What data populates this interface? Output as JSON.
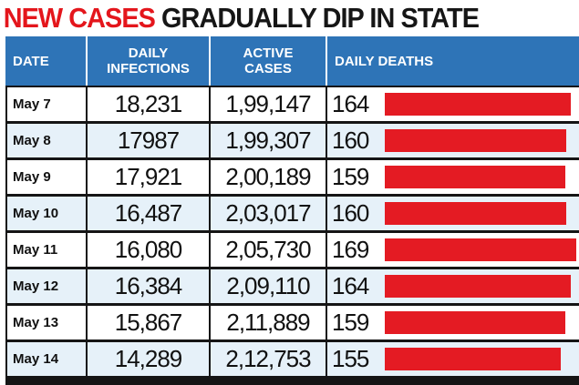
{
  "headline": {
    "part1": "NEW CASES",
    "part2": "GRADUALLY DIP IN STATE"
  },
  "table": {
    "headers": {
      "date": "DATE",
      "infections": "DAILY\nINFECTIONS",
      "active": "ACTIVE\nCASES",
      "deaths": "DAILY DEATHS"
    }
  },
  "colors": {
    "header_bg": "#2e74b7",
    "row_alt": "#e6f1f9",
    "bar": "#e41b23",
    "headline_red": "#e4161c"
  },
  "chart_data": {
    "type": "table",
    "bar_column": "DAILY DEATHS",
    "rows": [
      {
        "date": "May 7",
        "infections": "18,231",
        "active": "1,99,147",
        "deaths": "164",
        "deaths_value": 164
      },
      {
        "date": "May 8",
        "infections": "17987",
        "active": "1,99,307",
        "deaths": "160",
        "deaths_value": 160
      },
      {
        "date": "May 9",
        "infections": "17,921",
        "active": "2,00,189",
        "deaths": "159",
        "deaths_value": 159
      },
      {
        "date": "May 10",
        "infections": "16,487",
        "active": "2,03,017",
        "deaths": "160",
        "deaths_value": 160
      },
      {
        "date": "May 11",
        "infections": "16,080",
        "active": "2,05,730",
        "deaths": "169",
        "deaths_value": 169
      },
      {
        "date": "May 12",
        "infections": "16,384",
        "active": "2,09,110",
        "deaths": "164",
        "deaths_value": 164
      },
      {
        "date": "May 13",
        "infections": "15,867",
        "active": "2,11,889",
        "deaths": "159",
        "deaths_value": 159
      },
      {
        "date": "May 14",
        "infections": "14,289",
        "active": "2,12,753",
        "deaths": "155",
        "deaths_value": 155
      }
    ]
  }
}
